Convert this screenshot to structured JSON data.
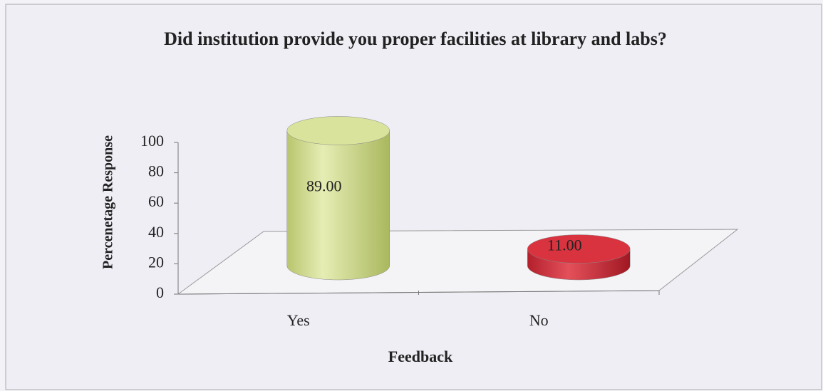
{
  "chart_data": {
    "type": "bar3d",
    "title": "Did institution provide you proper facilities at library and labs?",
    "categories": [
      "Yes",
      "No"
    ],
    "values": [
      89,
      11
    ],
    "value_labels": [
      "89.00",
      "11.00"
    ],
    "colors": [
      "#d9e39b",
      "#d8333f"
    ],
    "ylim": [
      0,
      100
    ],
    "yticks": [
      0,
      20,
      40,
      60,
      80,
      100
    ],
    "x_label": "Feedback",
    "y_label": "Percenetage Response",
    "grid": false
  }
}
